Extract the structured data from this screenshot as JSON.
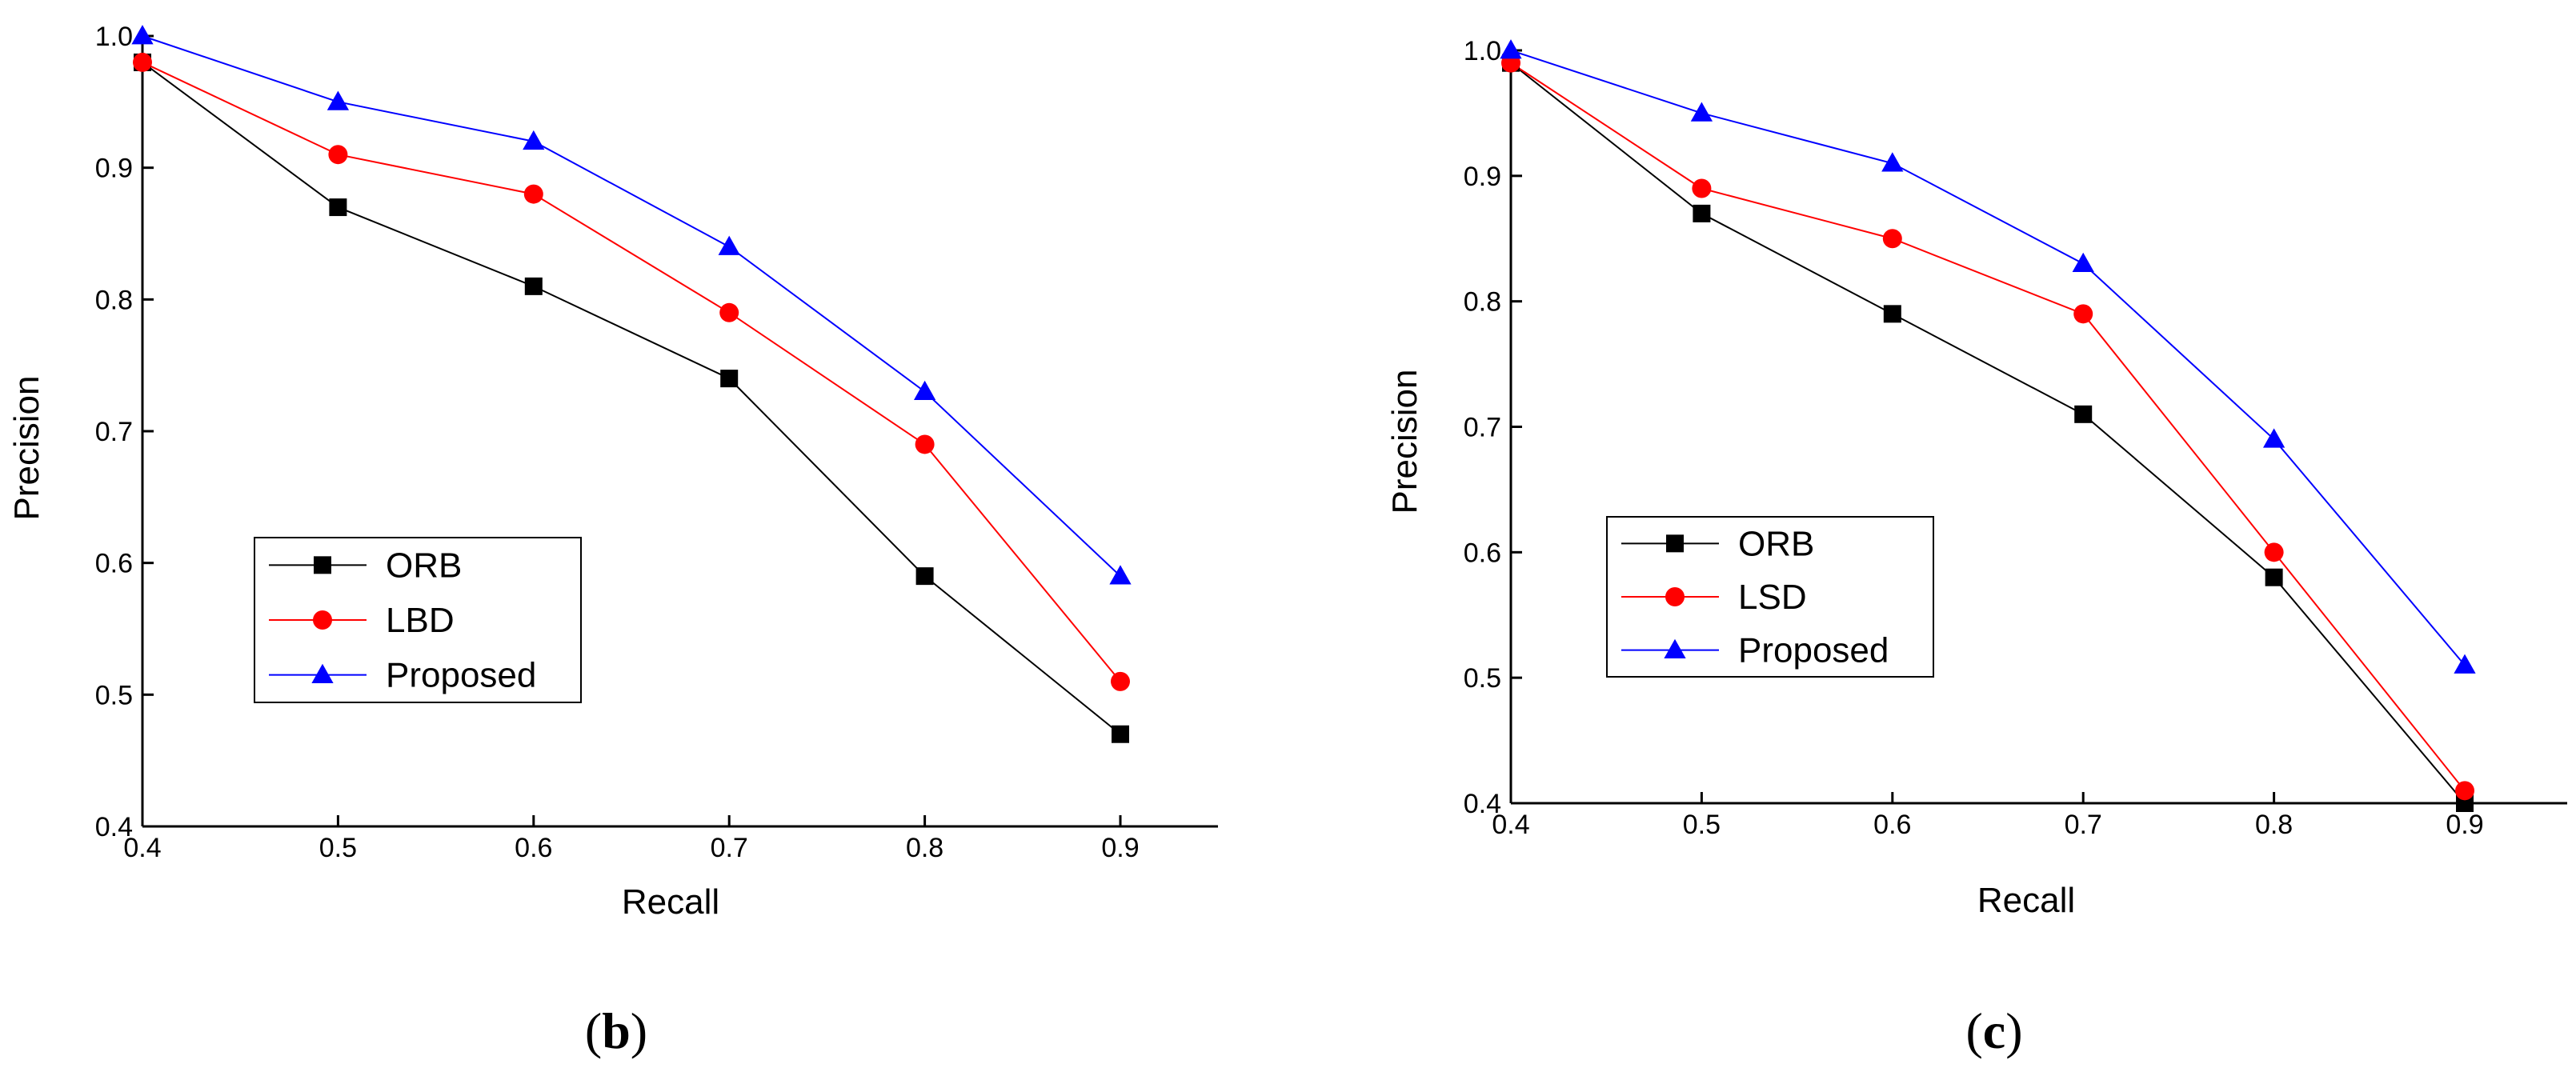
{
  "chart_data": [
    {
      "type": "line",
      "caption": {
        "open": "(",
        "letter": "b",
        "close": ")"
      },
      "xlabel": "Recall",
      "ylabel": "Precision",
      "xlim": [
        0.4,
        0.9
      ],
      "ylim": [
        0.4,
        1.0
      ],
      "x_ticks": [
        "0.4",
        "0.5",
        "0.6",
        "0.7",
        "0.8",
        "0.9"
      ],
      "y_ticks": [
        "0.4",
        "0.5",
        "0.6",
        "0.7",
        "0.8",
        "0.9",
        "1.0"
      ],
      "grid": false,
      "legend_position": "lower-left",
      "x": [
        0.4,
        0.5,
        0.6,
        0.7,
        0.8,
        0.9
      ],
      "series": [
        {
          "name": "ORB",
          "color": "#000000",
          "marker": "square",
          "values": [
            0.98,
            0.87,
            0.81,
            0.74,
            0.59,
            0.47
          ]
        },
        {
          "name": "LBD",
          "color": "#ff0000",
          "marker": "circle",
          "values": [
            0.98,
            0.91,
            0.88,
            0.79,
            0.69,
            0.51
          ]
        },
        {
          "name": "Proposed",
          "color": "#0000ff",
          "marker": "triangle",
          "values": [
            1.0,
            0.95,
            0.92,
            0.84,
            0.73,
            0.59
          ]
        }
      ]
    },
    {
      "type": "line",
      "caption": {
        "open": "(",
        "letter": "c",
        "close": ")"
      },
      "xlabel": "Recall",
      "ylabel": "Precision",
      "xlim": [
        0.4,
        0.9
      ],
      "ylim": [
        0.4,
        1.0
      ],
      "x_ticks": [
        "0.4",
        "0.5",
        "0.6",
        "0.7",
        "0.8",
        "0.9"
      ],
      "y_ticks": [
        "0.4",
        "0.5",
        "0.6",
        "0.7",
        "0.8",
        "0.9",
        "1.0"
      ],
      "grid": false,
      "legend_position": "lower-left",
      "x": [
        0.4,
        0.5,
        0.6,
        0.7,
        0.8,
        0.9
      ],
      "series": [
        {
          "name": "ORB",
          "color": "#000000",
          "marker": "square",
          "values": [
            0.99,
            0.87,
            0.79,
            0.71,
            0.58,
            0.4
          ]
        },
        {
          "name": "LSD",
          "color": "#ff0000",
          "marker": "circle",
          "values": [
            0.99,
            0.89,
            0.85,
            0.79,
            0.6,
            0.41
          ]
        },
        {
          "name": "Proposed",
          "color": "#0000ff",
          "marker": "triangle",
          "values": [
            1.0,
            0.95,
            0.91,
            0.83,
            0.69,
            0.51
          ]
        }
      ]
    }
  ]
}
